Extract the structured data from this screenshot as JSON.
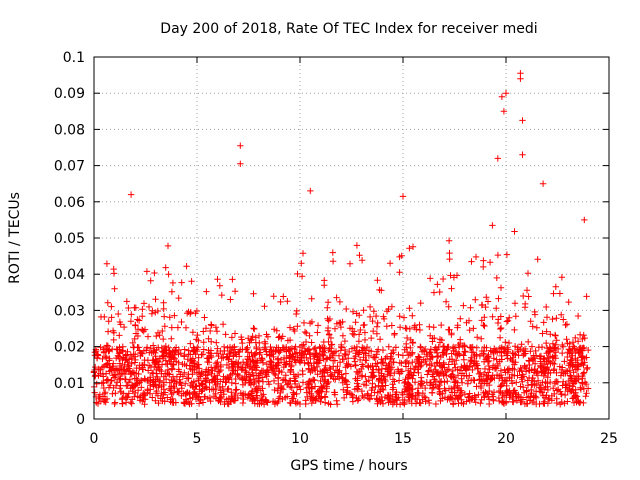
{
  "chart_data": {
    "type": "scatter",
    "title": "Day 200 of 2018, Rate Of TEC Index for receiver medi",
    "xlabel": "GPS time / hours",
    "ylabel": "ROTI / TECUs",
    "xlim": [
      0,
      25
    ],
    "ylim": [
      0,
      0.1
    ],
    "x_ticks": [
      "0",
      "5",
      "10",
      "15",
      "20",
      "25"
    ],
    "y_ticks": [
      "0",
      "0.01",
      "0.02",
      "0.03",
      "0.04",
      "0.05",
      "0.06",
      "0.07",
      "0.08",
      "0.09",
      "0.1"
    ],
    "grid": true,
    "marker": "+",
    "color": "#ff0000",
    "x_range_observed": [
      0,
      24
    ],
    "peaks": [
      {
        "x": 7.1,
        "y": 0.0755
      },
      {
        "x": 7.1,
        "y": 0.0705
      },
      {
        "x": 1.8,
        "y": 0.062
      },
      {
        "x": 10.5,
        "y": 0.063
      },
      {
        "x": 15.0,
        "y": 0.0615
      },
      {
        "x": 19.8,
        "y": 0.089
      },
      {
        "x": 20.0,
        "y": 0.09
      },
      {
        "x": 20.7,
        "y": 0.0955
      },
      {
        "x": 20.7,
        "y": 0.094
      },
      {
        "x": 19.9,
        "y": 0.085
      },
      {
        "x": 20.8,
        "y": 0.0825
      },
      {
        "x": 20.8,
        "y": 0.073
      },
      {
        "x": 19.6,
        "y": 0.072
      },
      {
        "x": 21.8,
        "y": 0.065
      },
      {
        "x": 23.8,
        "y": 0.055
      }
    ]
  }
}
